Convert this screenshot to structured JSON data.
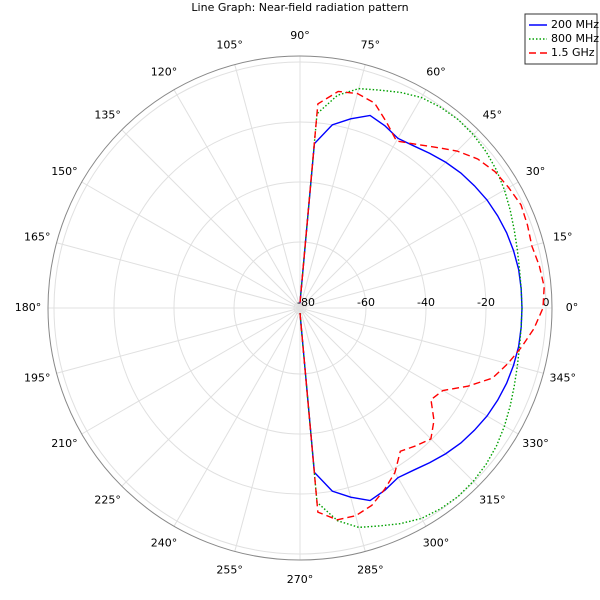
{
  "chart_data": {
    "type": "polar_line",
    "title": "Line Graph: Near-field radiation pattern",
    "theta": [
      -90,
      -85,
      -80,
      -75,
      -70,
      -65,
      -60,
      -55,
      -50,
      -45,
      -40,
      -35,
      -30,
      -25,
      -20,
      -15,
      -10,
      -5,
      0,
      5,
      10,
      15,
      20,
      25,
      30,
      35,
      40,
      45,
      50,
      55,
      60,
      65,
      70,
      75,
      80,
      85,
      90
    ],
    "series": [
      {
        "name": "200 MHz",
        "color": "#0000ff",
        "dash": "solid",
        "values": [
          -80.3,
          -27,
          -20,
          -16.7,
          -13.7,
          -15,
          -16.7,
          -16,
          -14.7,
          -13.3,
          -12,
          -11,
          -10,
          -9.3,
          -8.7,
          -8.3,
          -8,
          -8,
          -8,
          -8,
          -8,
          -8.3,
          -8.7,
          -9.3,
          -10,
          -11,
          -12,
          -13.3,
          -14.7,
          -16,
          -16.7,
          -15,
          -13.7,
          -16.7,
          -20,
          -27,
          -80.3
        ]
      },
      {
        "name": "800 MHz",
        "color": "#00a000",
        "dash": "dotted",
        "values": [
          -80.3,
          -17,
          -10,
          -6.3,
          -4.7,
          -2.7,
          -1,
          -0.3,
          0,
          -0.3,
          -1,
          -2,
          -3.3,
          -4.7,
          -6,
          -7,
          -7.7,
          -8,
          -8,
          -8,
          -7.7,
          -7,
          -6,
          -4.7,
          -3.3,
          -2,
          -1,
          -0.3,
          0,
          -0.3,
          -1,
          -2.7,
          -4.7,
          -6.3,
          -10,
          -17,
          -80.3
        ]
      },
      {
        "name": "1.5 GHz",
        "color": "#ff0000",
        "dash": "dashed",
        "values": [
          -80.3,
          -13.7,
          -10.3,
          -10.3,
          -12,
          -15.3,
          -18.7,
          -23.7,
          -22,
          -20.3,
          -23.7,
          -28.7,
          -27,
          -20.3,
          -13.7,
          -10.3,
          -7,
          -3.7,
          -1,
          -0.3,
          -1,
          -2,
          -1.3,
          -0.7,
          -1.7,
          -2.7,
          -4.7,
          -8,
          -12,
          -15.3,
          -17.7,
          -13.7,
          -9.3,
          -8,
          -8.7,
          -13.7,
          -80.3
        ]
      }
    ],
    "rlim": [
      -82,
      2
    ],
    "rticks": [
      -80,
      -60,
      -40,
      -20,
      0
    ],
    "thetaticks": [
      {
        "value": 0,
        "label": "0°"
      },
      {
        "value": 15,
        "label": "15°"
      },
      {
        "value": 30,
        "label": "30°"
      },
      {
        "value": 45,
        "label": "45°"
      },
      {
        "value": 60,
        "label": "60°"
      },
      {
        "value": 75,
        "label": "75°"
      },
      {
        "value": 90,
        "label": "90°"
      },
      {
        "value": 105,
        "label": "105°"
      },
      {
        "value": 120,
        "label": "120°"
      },
      {
        "value": 135,
        "label": "135°"
      },
      {
        "value": 150,
        "label": "150°"
      },
      {
        "value": 165,
        "label": "165°"
      },
      {
        "value": 180,
        "label": "180°"
      },
      {
        "value": 195,
        "label": "195°"
      },
      {
        "value": 210,
        "label": "210°"
      },
      {
        "value": 225,
        "label": "225°"
      },
      {
        "value": 240,
        "label": "240°"
      },
      {
        "value": 255,
        "label": "255°"
      },
      {
        "value": 270,
        "label": "270°"
      },
      {
        "value": 285,
        "label": "285°"
      },
      {
        "value": 300,
        "label": "300°"
      },
      {
        "value": 315,
        "label": "315°"
      },
      {
        "value": 330,
        "label": "330°"
      },
      {
        "value": 345,
        "label": "345°"
      }
    ],
    "grid": true,
    "legend": "top-right"
  }
}
